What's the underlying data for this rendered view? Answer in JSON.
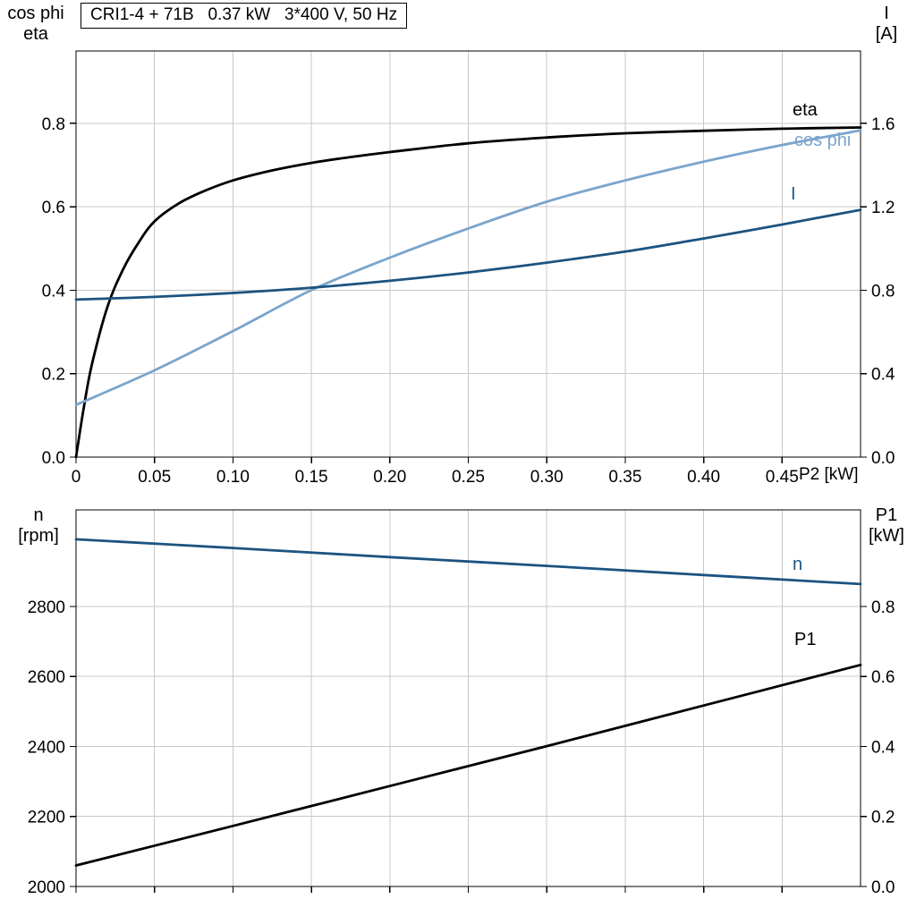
{
  "title_box": {
    "text": "CRI1-4 + 71B   0.37 kW   3*400 V, 50 Hz"
  },
  "colors": {
    "black": "#000000",
    "light_blue": "#7aa5cc",
    "dark_blue": "#1c5380",
    "grid": "#c8c8c8"
  },
  "chart_data": [
    {
      "type": "line",
      "title": "CRI1-4 + 71B   0.37 kW   3*400 V, 50 Hz",
      "xlabel": "P2 [kW]",
      "xlim": [
        0,
        0.5
      ],
      "grid": true,
      "x_ticks": {
        "values": [
          0,
          0.05,
          0.1,
          0.15,
          0.2,
          0.25,
          0.3,
          0.35,
          0.4,
          0.45
        ],
        "labels": [
          "0",
          "0.05",
          "0.10",
          "0.15",
          "0.20",
          "0.25",
          "0.30",
          "0.35",
          "0.40",
          "0.45"
        ]
      },
      "y_left": {
        "label_lines": [
          "cos phi",
          "eta"
        ],
        "lim": [
          0,
          0.9733
        ],
        "ticks": [
          0,
          0.2,
          0.4,
          0.6,
          0.8
        ],
        "tick_labels": [
          "0.0",
          "0.2",
          "0.4",
          "0.6",
          "0.8"
        ]
      },
      "y_right": {
        "label_lines": [
          "I",
          "[A]"
        ],
        "lim": [
          0,
          1.9466
        ],
        "ticks": [
          0,
          0.4,
          0.8,
          1.2,
          1.6
        ],
        "tick_labels": [
          "0.0",
          "0.4",
          "0.8",
          "1.2",
          "1.6"
        ]
      },
      "series": [
        {
          "name": "eta",
          "axis": "left",
          "color": "#000000",
          "x": [
            0,
            0.005,
            0.01,
            0.02,
            0.03,
            0.04,
            0.05,
            0.065,
            0.08,
            0.1,
            0.125,
            0.15,
            0.175,
            0.2,
            0.25,
            0.3,
            0.35,
            0.4,
            0.45,
            0.5
          ],
          "y": [
            0,
            0.12,
            0.22,
            0.36,
            0.45,
            0.515,
            0.565,
            0.607,
            0.635,
            0.663,
            0.687,
            0.705,
            0.719,
            0.731,
            0.752,
            0.766,
            0.776,
            0.782,
            0.787,
            0.79
          ]
        },
        {
          "name": "cos phi",
          "axis": "left",
          "color": "#7aa5cc",
          "x": [
            0,
            0.05,
            0.1,
            0.15,
            0.2,
            0.25,
            0.3,
            0.35,
            0.4,
            0.45,
            0.5
          ],
          "y": [
            0.125,
            0.208,
            0.302,
            0.4,
            0.478,
            0.548,
            0.612,
            0.663,
            0.708,
            0.748,
            0.783
          ]
        },
        {
          "name": "I",
          "axis": "right",
          "color": "#1c5380",
          "x": [
            0,
            0.05,
            0.1,
            0.15,
            0.2,
            0.25,
            0.3,
            0.35,
            0.4,
            0.45,
            0.5
          ],
          "y": [
            0.755,
            0.768,
            0.787,
            0.812,
            0.845,
            0.885,
            0.932,
            0.985,
            1.048,
            1.115,
            1.185
          ]
        }
      ]
    },
    {
      "type": "line",
      "xlabel": "",
      "xlim": [
        0,
        0.5
      ],
      "grid": true,
      "x_ticks": {
        "values": [
          0,
          0.05,
          0.1,
          0.15,
          0.2,
          0.25,
          0.3,
          0.35,
          0.4,
          0.45
        ],
        "labels": []
      },
      "y_left": {
        "label_lines": [
          "n",
          "[rpm]"
        ],
        "lim": [
          2000,
          3076
        ],
        "ticks": [
          2000,
          2200,
          2400,
          2600,
          2800
        ],
        "tick_labels": [
          "2000",
          "2200",
          "2400",
          "2600",
          "2800"
        ]
      },
      "y_right": {
        "label_lines": [
          "P1",
          "[kW]"
        ],
        "lim": [
          0,
          1.076
        ],
        "ticks": [
          0,
          0.2,
          0.4,
          0.6,
          0.8
        ],
        "tick_labels": [
          "0.0",
          "0.2",
          "0.4",
          "0.6",
          "0.8"
        ]
      },
      "series": [
        {
          "name": "n",
          "axis": "left",
          "color": "#1c5380",
          "x": [
            0,
            0.1,
            0.2,
            0.3,
            0.4,
            0.5
          ],
          "y": [
            2992,
            2967,
            2941,
            2916,
            2890,
            2864
          ]
        },
        {
          "name": "P1",
          "axis": "right",
          "color": "#000000",
          "x": [
            0,
            0.1,
            0.2,
            0.3,
            0.4,
            0.5
          ],
          "y": [
            0.06,
            0.173,
            0.287,
            0.401,
            0.517,
            0.633
          ]
        }
      ]
    }
  ]
}
